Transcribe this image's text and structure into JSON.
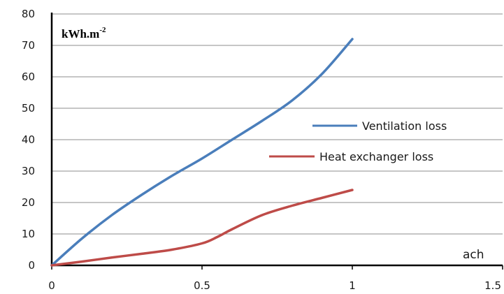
{
  "chart_data": {
    "type": "line",
    "ylabel_main": "kWh.m",
    "ylabel_sup": "-2",
    "xlabel": "ach",
    "xlim": [
      0,
      1.5
    ],
    "ylim": [
      0,
      80
    ],
    "x_ticks": [
      0,
      0.5,
      1,
      1.5
    ],
    "x_tick_labels": [
      "0",
      "0.5",
      "1",
      "1.5"
    ],
    "y_ticks": [
      0,
      10,
      20,
      30,
      40,
      50,
      60,
      70,
      80
    ],
    "y_tick_labels": [
      "0",
      "10",
      "20",
      "30",
      "40",
      "50",
      "60",
      "70",
      "80"
    ],
    "grid": "horizontal",
    "legend_position": "right",
    "series": [
      {
        "name": "Ventilation loss",
        "color": "#4a7ebb",
        "x": [
          0,
          0.1,
          0.2,
          0.3,
          0.4,
          0.5,
          0.6,
          0.7,
          0.8,
          0.9,
          1.0
        ],
        "y": [
          0,
          8.5,
          16,
          22.5,
          28.5,
          34,
          40,
          46,
          52.5,
          61,
          72
        ]
      },
      {
        "name": "Heat exchanger loss",
        "color": "#be4b48",
        "x": [
          0,
          0.1,
          0.2,
          0.3,
          0.4,
          0.5,
          0.55,
          0.6,
          0.7,
          0.8,
          0.9,
          1.0
        ],
        "y": [
          0,
          1.2,
          2.5,
          3.7,
          5,
          7,
          9,
          11.5,
          16,
          19,
          21.5,
          24
        ]
      }
    ]
  }
}
